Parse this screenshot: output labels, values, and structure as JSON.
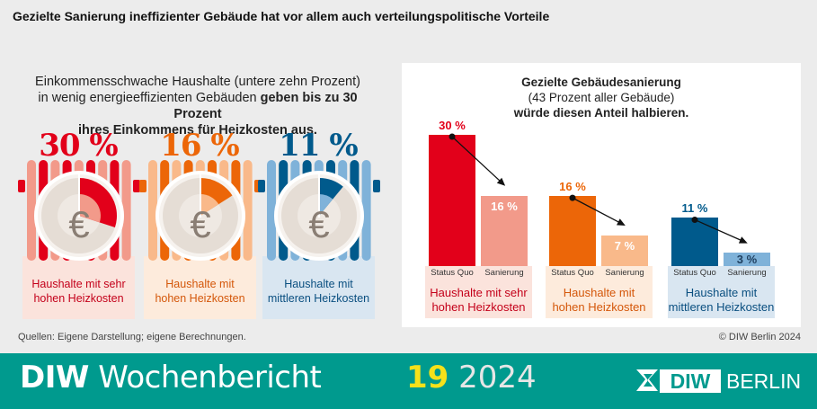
{
  "headline": "Gezielte Sanierung ineffizienter Gebäude hat vor allem auch verteilungspolitische Vorteile",
  "left_text": {
    "line1": "Einkommensschwache Haushalte (untere zehn Prozent)",
    "line2_a": "in wenig energieeffizienten Gebäuden ",
    "line2_b": "geben bis zu 30 Prozent",
    "line3": "ihres Einkommens für Heizkosten aus."
  },
  "groups": [
    {
      "pct_label": "30 %",
      "share": 0.3,
      "color": "#e2001a",
      "light": "#f29a8a",
      "label1": "Haushalte mit sehr",
      "label2": "hohen Heizkosten",
      "bg": "#fbe3dc",
      "label_color": "#c4001a"
    },
    {
      "pct_label": "16 %",
      "share": 0.16,
      "color": "#ec6608",
      "light": "#f9b98a",
      "label1": "Haushalte mit",
      "label2": "hohen Heizkosten",
      "bg": "#fdebdc",
      "label_color": "#d4570a"
    },
    {
      "pct_label": "11 %",
      "share": 0.11,
      "color": "#005a8c",
      "light": "#7fb2d9",
      "label1": "Haushalte mit",
      "label2": "mittleren Heizkosten",
      "bg": "#d9e6f1",
      "label_color": "#0a4f80"
    }
  ],
  "right_title": {
    "line1": "Gezielte Gebäudesanierung",
    "line2": "(43 Prozent aller Gebäude)",
    "line3": "würde diesen Anteil halbieren."
  },
  "chart_data": {
    "type": "bar",
    "categories": [
      "Haushalte mit sehr hohen Heizkosten",
      "Haushalte mit hohen Heizkosten",
      "Haushalte mit mittleren Heizkosten"
    ],
    "series": [
      {
        "name": "Status Quo",
        "values": [
          30,
          16,
          11
        ]
      },
      {
        "name": "Sanierung",
        "values": [
          16,
          7,
          3
        ]
      }
    ],
    "value_labels": [
      [
        "30 %",
        "16 %"
      ],
      [
        "16 %",
        "7 %"
      ],
      [
        "11 %",
        "3 %"
      ]
    ],
    "ylim": [
      0,
      30
    ]
  },
  "sources": "Quellen: Eigene Darstellung; eigene Berechnungen.",
  "copyright": "© DIW Berlin 2024",
  "footer": {
    "brand_bold": "DIW",
    "brand_rest": " Wochenbericht",
    "issue_number": "19",
    "issue_year": " 2024",
    "logo_text_1": "DIW",
    "logo_text_2": "BERLIN"
  },
  "euro_symbol": "€"
}
